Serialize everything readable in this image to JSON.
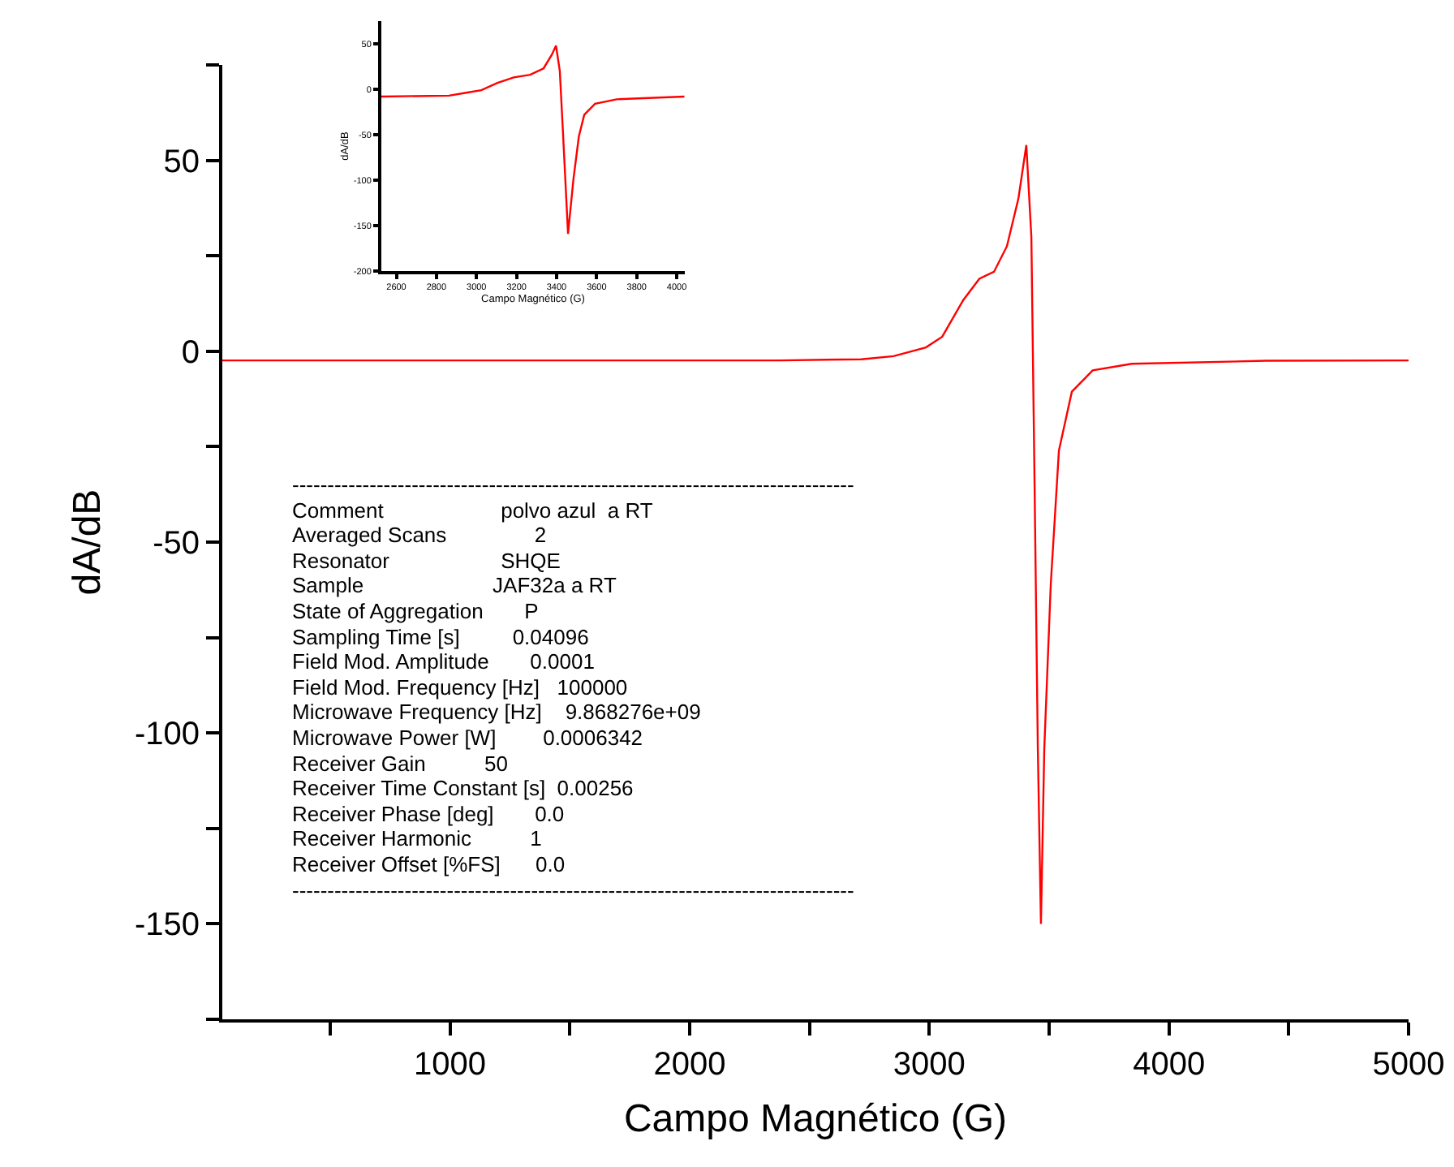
{
  "chart_data": [
    {
      "type": "line",
      "xlabel": "Campo Magnético (G)",
      "ylabel": "dA/dB",
      "xlim": [
        50,
        5000
      ],
      "ylim": [
        -175,
        75
      ],
      "xticks": [
        {
          "value": 500,
          "label": null
        },
        1000,
        {
          "value": 1500,
          "label": null
        },
        2000,
        {
          "value": 2500,
          "label": null
        },
        3000,
        {
          "value": 3500,
          "label": null
        },
        4000,
        {
          "value": 4500,
          "label": null
        },
        5000
      ],
      "yticks": [
        {
          "value": -175,
          "label": null
        },
        -150,
        {
          "value": -125,
          "label": null
        },
        -100,
        {
          "value": -75,
          "label": null
        },
        -50,
        {
          "value": -25,
          "label": null
        },
        0,
        {
          "value": 25,
          "label": null
        },
        50,
        {
          "value": 75,
          "label": null
        }
      ],
      "grid": false,
      "marker": "none",
      "line_style": "solid",
      "series": [
        {
          "color": "#ff0000",
          "x": [
            50,
            2378,
            2716,
            2851,
            2986,
            3054,
            3142,
            3209,
            3270,
            3324,
            3372,
            3405,
            3426,
            3439,
            3453,
            3466,
            3480,
            3507,
            3541,
            3595,
            3682,
            3845,
            4405,
            5000
          ],
          "values": [
            -2.4,
            -2.4,
            -2.1,
            -1.3,
            1,
            3.8,
            13.4,
            19,
            20.8,
            27.5,
            40,
            54,
            30,
            -33,
            -104,
            -150,
            -104,
            -61,
            -26,
            -10.6,
            -5,
            -3.3,
            -2.5,
            -2.4
          ]
        }
      ],
      "annotations": [
        "--------------------------------------------------------------------------------",
        "Comment                    polvo azul  a RT",
        "Averaged Scans               2",
        "Resonator                   SHQE",
        "Sample                      JAF32a a RT",
        "State of Aggregation       P",
        "Sampling Time [s]         0.04096",
        "Field Mod. Amplitude       0.0001",
        "Field Mod. Frequency [Hz]   100000",
        "Microwave Frequency [Hz]    9.868276e+09",
        "Microwave Power [W]        0.0006342",
        "Receiver Gain          50",
        "Receiver Time Constant [s]  0.00256",
        "Receiver Phase [deg]       0.0",
        "Receiver Harmonic          1",
        "Receiver Offset [%FS]      0.0",
        "--------------------------------------------------------------------------------"
      ]
    },
    {
      "type": "line",
      "xlabel": "Campo Magnético (G)",
      "ylabel": "dA/dB",
      "xlim": [
        2525,
        4040
      ],
      "ylim": [
        -200,
        75
      ],
      "xticks": [
        2600,
        2800,
        3000,
        3200,
        3400,
        3600,
        3800,
        4000
      ],
      "yticks": [
        -200,
        -150,
        -100,
        -50,
        0,
        50
      ],
      "grid": false,
      "marker": "none",
      "line_style": "solid",
      "series": [
        {
          "color": "#ff0000",
          "x": [
            2525,
            2862,
            2943,
            3024,
            3105,
            3186,
            3268,
            3335,
            3376,
            3397,
            3416,
            3430,
            3457,
            3484,
            3511,
            3538,
            3592,
            3700,
            3808,
            4038
          ],
          "values": [
            -8,
            -7,
            -4,
            -1,
            7,
            13,
            16,
            23,
            38,
            48,
            20,
            -40,
            -159,
            -99,
            -52,
            -28,
            -16,
            -11,
            -10,
            -8
          ]
        }
      ]
    }
  ]
}
